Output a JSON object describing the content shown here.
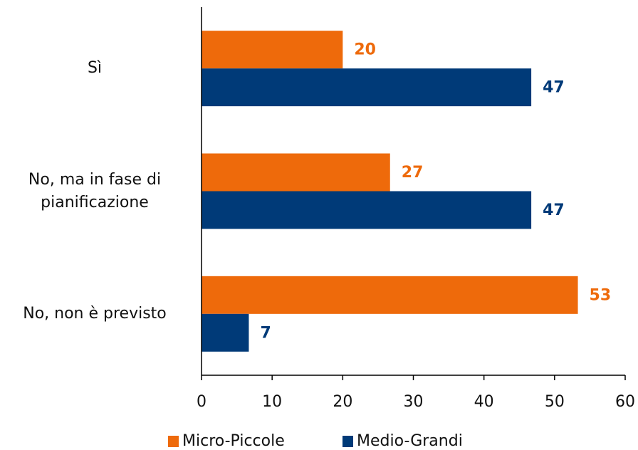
{
  "chart_data": {
    "type": "hbar",
    "categories": [
      "Sì",
      "No, ma in fase di pianificazione",
      "No, non è previsto"
    ],
    "series": [
      {
        "name": "Micro-Piccole",
        "color": "#ee6a0b",
        "values": [
          20,
          26.7,
          53.3
        ],
        "value_labels": [
          "20",
          "27",
          "53"
        ]
      },
      {
        "name": "Medio-Grandi",
        "color": "#003a78",
        "values": [
          46.7,
          46.7,
          6.7
        ],
        "value_labels": [
          "47",
          "47",
          "7"
        ]
      }
    ],
    "xlim": [
      0,
      60
    ],
    "xticks": [
      0,
      10,
      20,
      30,
      40,
      50,
      60
    ],
    "legend": "bottom"
  }
}
